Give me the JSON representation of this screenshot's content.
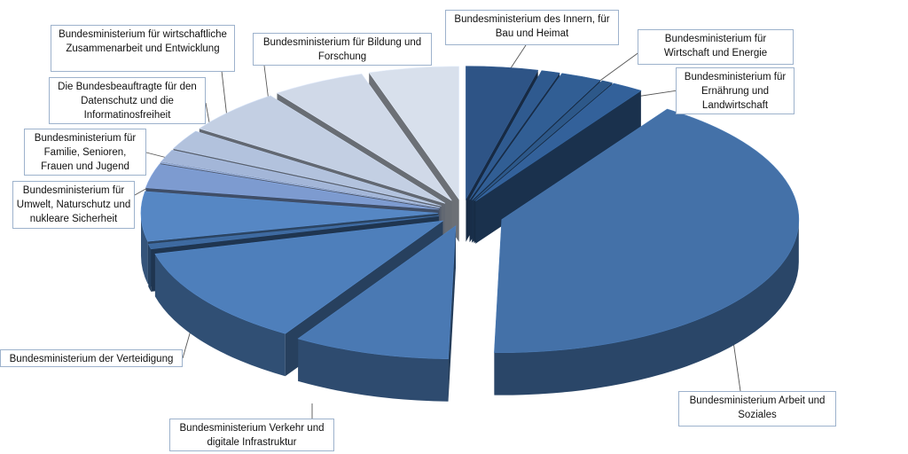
{
  "chart_data": {
    "type": "pie",
    "variant": "3d-exploded",
    "legend": "none",
    "slices": [
      {
        "label": "Bundesministerium des Innern, für Bau und Heimat",
        "value": 3.9,
        "color": "#2e5486"
      },
      {
        "label": "",
        "value": 1.0,
        "color": "#2f5a8f"
      },
      {
        "label": "Bundesministerium für Wirtschaft und Energie",
        "value": 2.2,
        "color": "#315e94"
      },
      {
        "label": "",
        "value": 0.6,
        "color": "#2d5889"
      },
      {
        "label": "Bundesministerium für Ernährung und Landwirtschaft",
        "value": 1.7,
        "color": "#33619a"
      },
      {
        "label": "Bundesministerium Arbeit und Soziales",
        "value": 41.0,
        "color": "#4471a8"
      },
      {
        "label": "Bundesministerium Verkehr und digitale Infrastruktur",
        "value": 8.5,
        "color": "#4a79b3"
      },
      {
        "label": "Bundesministerium der Verteidigung",
        "value": 12.1,
        "color": "#4e7fbb"
      },
      {
        "label": "Bundesministerium für Umwelt, Naturschutz und nukleare Sicherheit",
        "value": 0.6,
        "color": "#3e6aa0"
      },
      {
        "label": "",
        "value": 6.0,
        "color": "#5687c4"
      },
      {
        "label": "Bundesministerium für Familie, Senioren, Frauen und Jugend",
        "value": 2.9,
        "color": "#7d9bd0"
      },
      {
        "label": "Die Bundesbeauftragte für den Datenschutz und die Informatinosfreiheit",
        "value": 0.1,
        "color": "#93a9d2"
      },
      {
        "label": "",
        "value": 1.5,
        "color": "#a3b6d8"
      },
      {
        "label": "Bundesministerium für wirtschaftliche Zusammenarbeit und Entwicklung",
        "value": 2.4,
        "color": "#b2c2dd"
      },
      {
        "label": "",
        "value": 5.5,
        "color": "#c3cfe3"
      },
      {
        "label": "Bundesministerium für Bildung und Forschung",
        "value": 5.1,
        "color": "#d0d9e8"
      },
      {
        "label": "",
        "value": 4.9,
        "color": "#d8e0ec"
      }
    ]
  },
  "callouts": {
    "innern": "Bundesministerium des Innern, für Bau und Heimat",
    "wirtschaft": "Bundesministerium für Wirtschaft und Energie",
    "ernaehrung": "Bundesministerium für Ernährung und Landwirtschaft",
    "arbeit": "Bundesministerium Arbeit und Soziales",
    "verkehr": "Bundesministerium Verkehr und digitale Infrastruktur",
    "verteidigung": "Bundesministerium der Verteidigung",
    "umwelt": "Bundesministerium für Umwelt, Naturschutz und nukleare Sicherheit",
    "familie": "Bundesministerium für Familie, Senioren, Frauen und Jugend",
    "datenschutz": "Die Bundesbeauftragte für den Datenschutz und die Informatinosfreiheit",
    "zusammenarbeit": "Bundesministerium für wirtschaftliche Zusammenarbeit und Entwicklung",
    "bildung": "Bundesministerium für Bildung und Forschung"
  }
}
